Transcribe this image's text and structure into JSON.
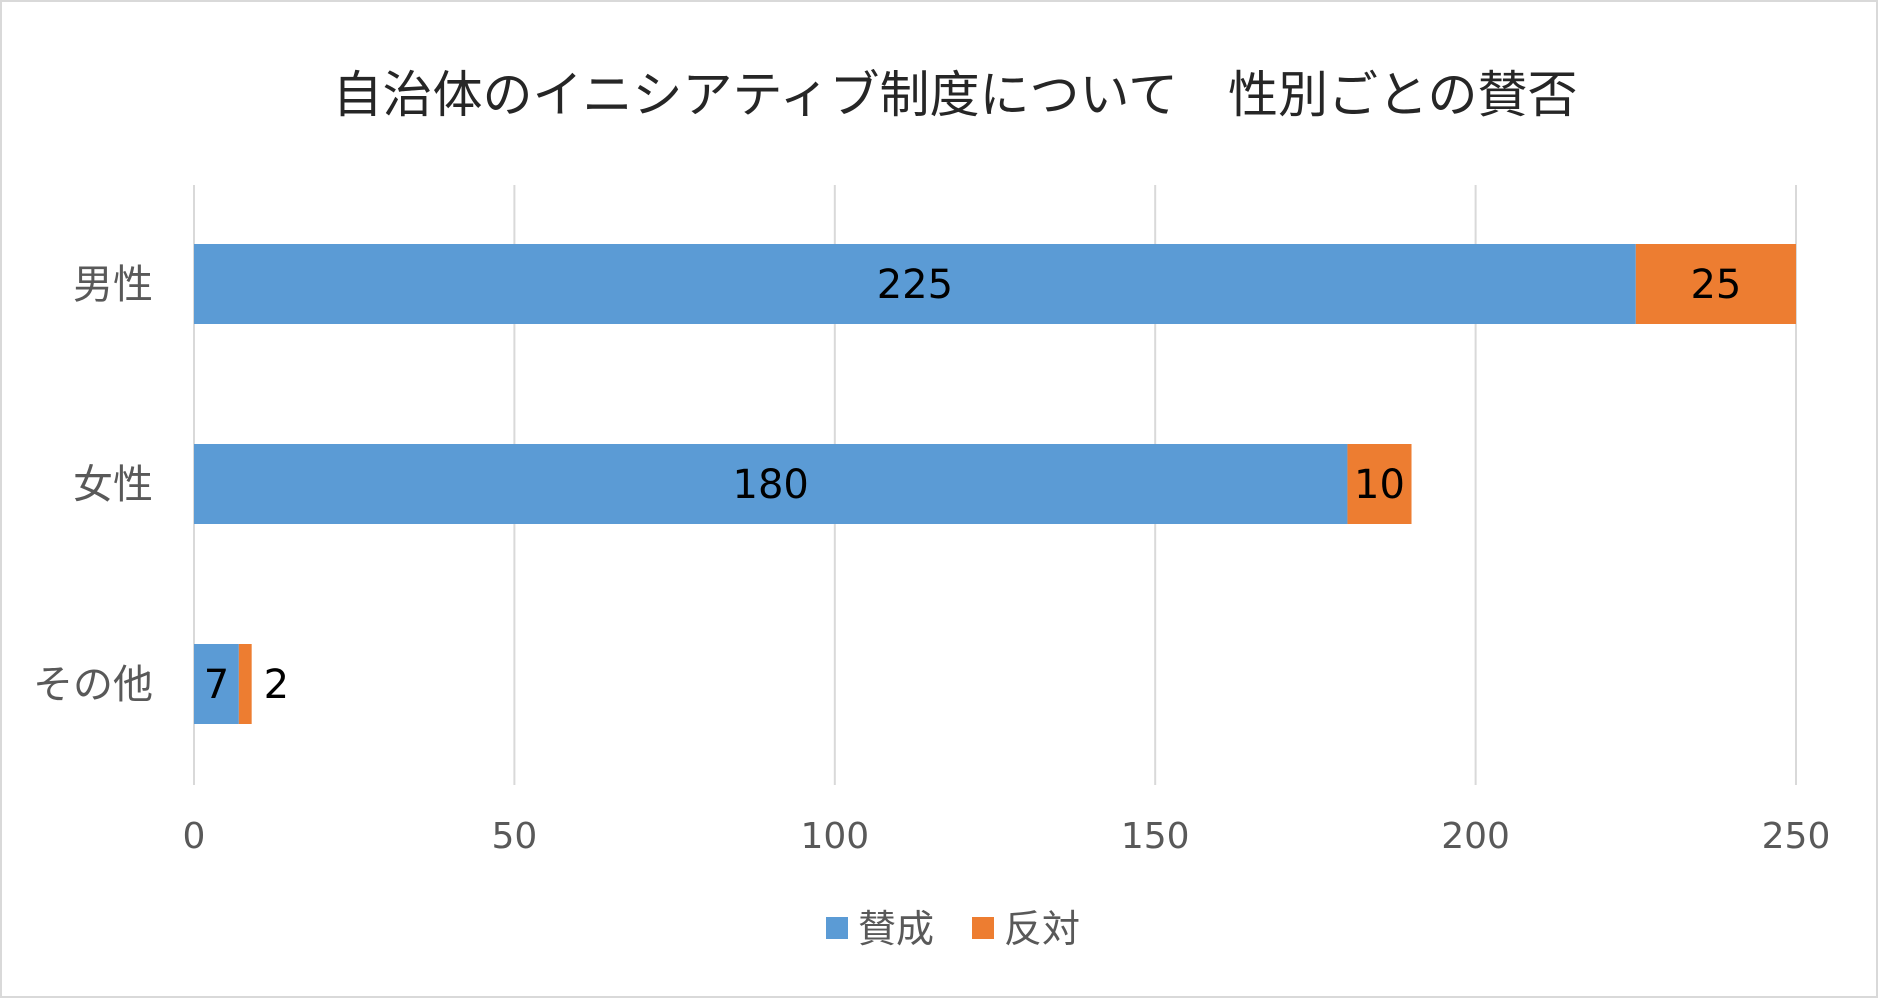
{
  "chart_data": {
    "type": "bar",
    "orientation": "horizontal",
    "stacked": true,
    "title": "自治体のイニシアティブ制度について　性別ごとの賛否",
    "categories": [
      "男性",
      "女性",
      "その他"
    ],
    "series": [
      {
        "name": "賛成",
        "values": [
          225,
          180,
          7
        ],
        "color": "#5b9bd5"
      },
      {
        "name": "反対",
        "values": [
          25,
          10,
          2
        ],
        "color": "#ed7d31"
      }
    ],
    "xlim": [
      0,
      250
    ],
    "xticks": [
      0,
      50,
      100,
      150,
      200,
      250
    ],
    "grid": true,
    "legend_position": "bottom",
    "data_labels": true,
    "colors": {
      "axis_text": "#595959",
      "title_text": "#262626",
      "label_text": "#000000",
      "grid": "#d9d9d9",
      "border": "#d9d9d9"
    }
  }
}
